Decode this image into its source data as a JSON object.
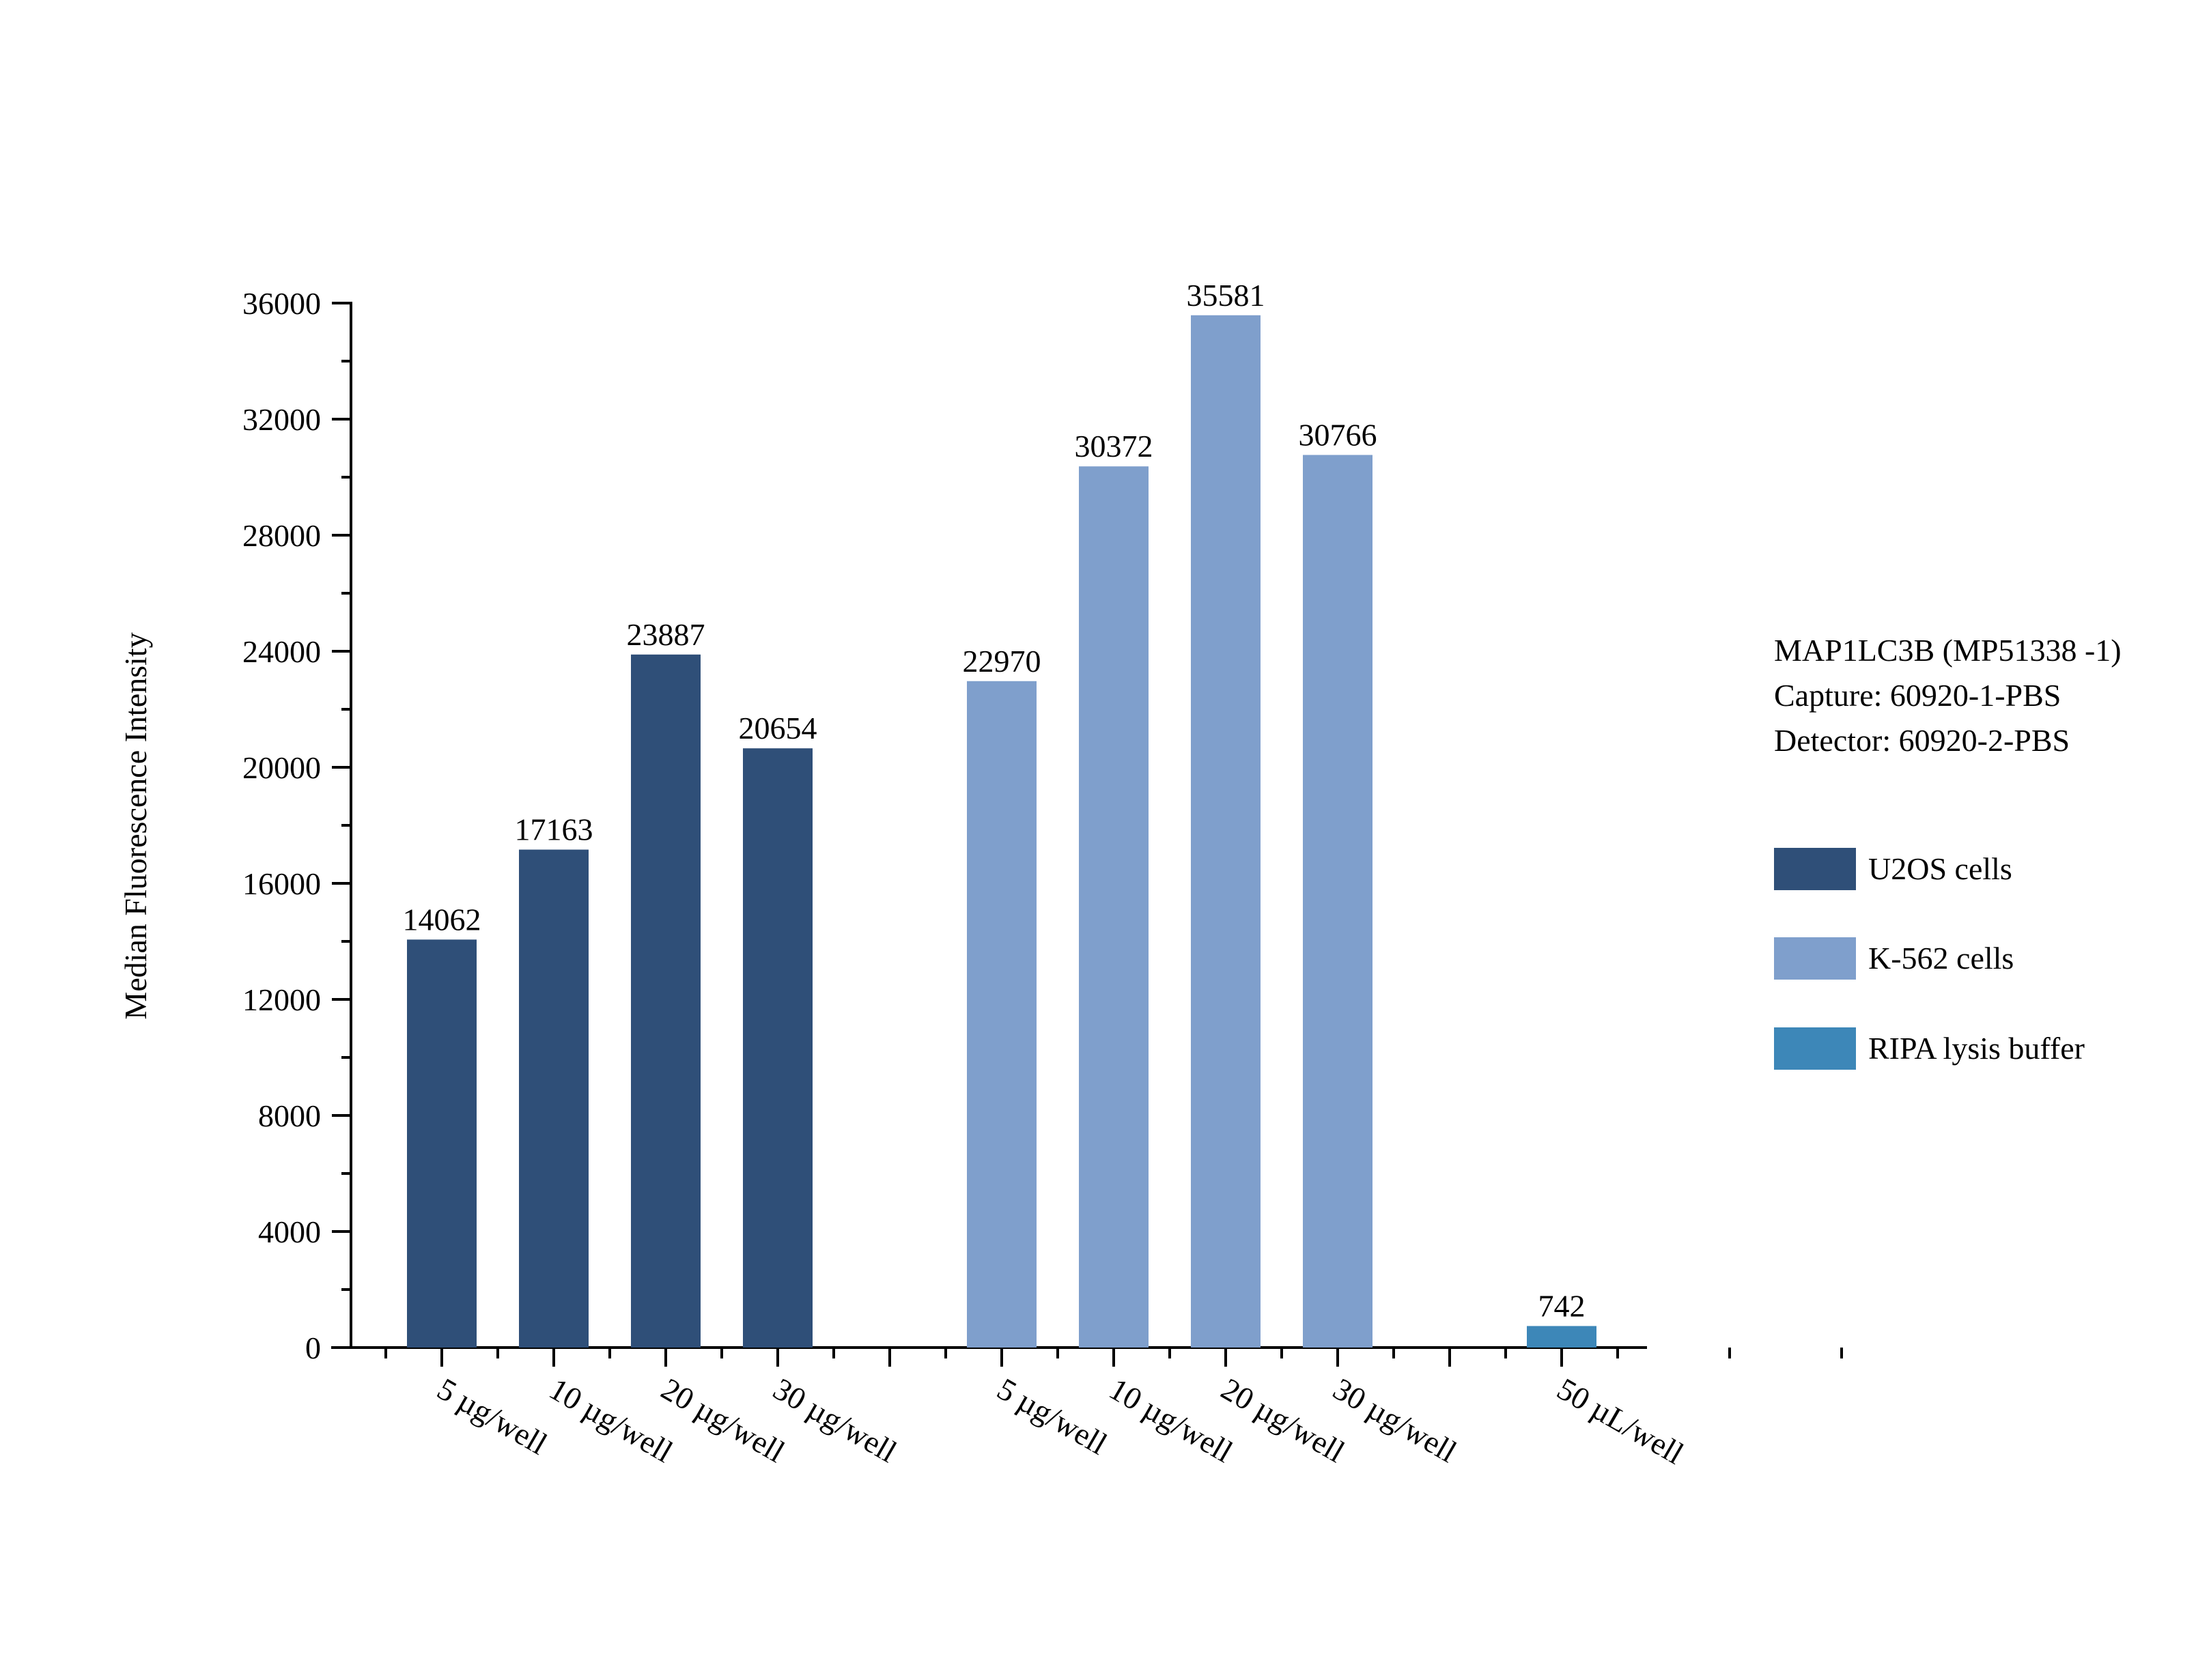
{
  "chart_data": {
    "type": "bar",
    "ylabel": "Median Fluorescence Intensity",
    "ylim": [
      0,
      36000
    ],
    "yticks": [
      0,
      4000,
      8000,
      12000,
      16000,
      20000,
      24000,
      28000,
      32000,
      36000
    ],
    "grid": false,
    "legend_position": "right",
    "info": [
      "MAP1LC3B (MP51338 -1)",
      "Capture: 60920-1-PBS",
      "Detector: 60920-2-PBS"
    ],
    "series": [
      {
        "name": "U2OS cells",
        "color": "#2f4f78",
        "categories": [
          "5 µg/well",
          "10 µg/well",
          "20 µg/well",
          "30 µg/well"
        ],
        "values": [
          14062,
          17163,
          23887,
          20654
        ]
      },
      {
        "name": "K-562 cells",
        "color": "#7f9fcc",
        "categories": [
          "5 µg/well",
          "10 µg/well",
          "20 µg/well",
          "30 µg/well"
        ],
        "values": [
          22970,
          30372,
          35581,
          30766
        ]
      },
      {
        "name": "RIPA lysis buffer",
        "color": "#3d87b8",
        "categories": [
          "50 µL/well"
        ],
        "values": [
          742
        ]
      }
    ]
  }
}
